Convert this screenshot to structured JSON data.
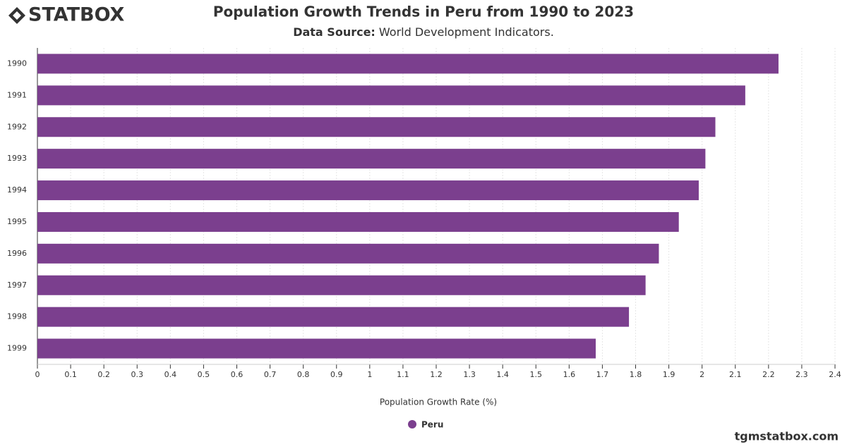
{
  "brand": "STATBOX",
  "footer": "tgmstatbox.com",
  "chart_data": {
    "type": "hbar",
    "title": "Population Growth Trends in Peru from 1990 to 2023",
    "subtitle_label": "Data Source:",
    "subtitle": "World Development Indicators.",
    "x_label": "Population Growth Rate (%)",
    "categories": [
      "1990",
      "1991",
      "1992",
      "1993",
      "1994",
      "1995",
      "1996",
      "1997",
      "1998",
      "1999"
    ],
    "series": [
      {
        "name": "Peru",
        "color": "#7b3f8e",
        "values": [
          2.23,
          2.13,
          2.04,
          2.01,
          1.99,
          1.93,
          1.87,
          1.83,
          1.78,
          1.68
        ]
      }
    ],
    "xlim": [
      0,
      2.4
    ],
    "xticks": [
      0,
      0.1,
      0.2,
      0.3,
      0.4,
      0.5,
      0.6,
      0.7,
      0.8,
      0.9,
      1,
      1.1,
      1.2,
      1.3,
      1.4,
      1.5,
      1.6,
      1.7,
      1.8,
      1.9,
      2,
      2.1,
      2.2,
      2.3,
      2.4
    ],
    "grid": true
  }
}
